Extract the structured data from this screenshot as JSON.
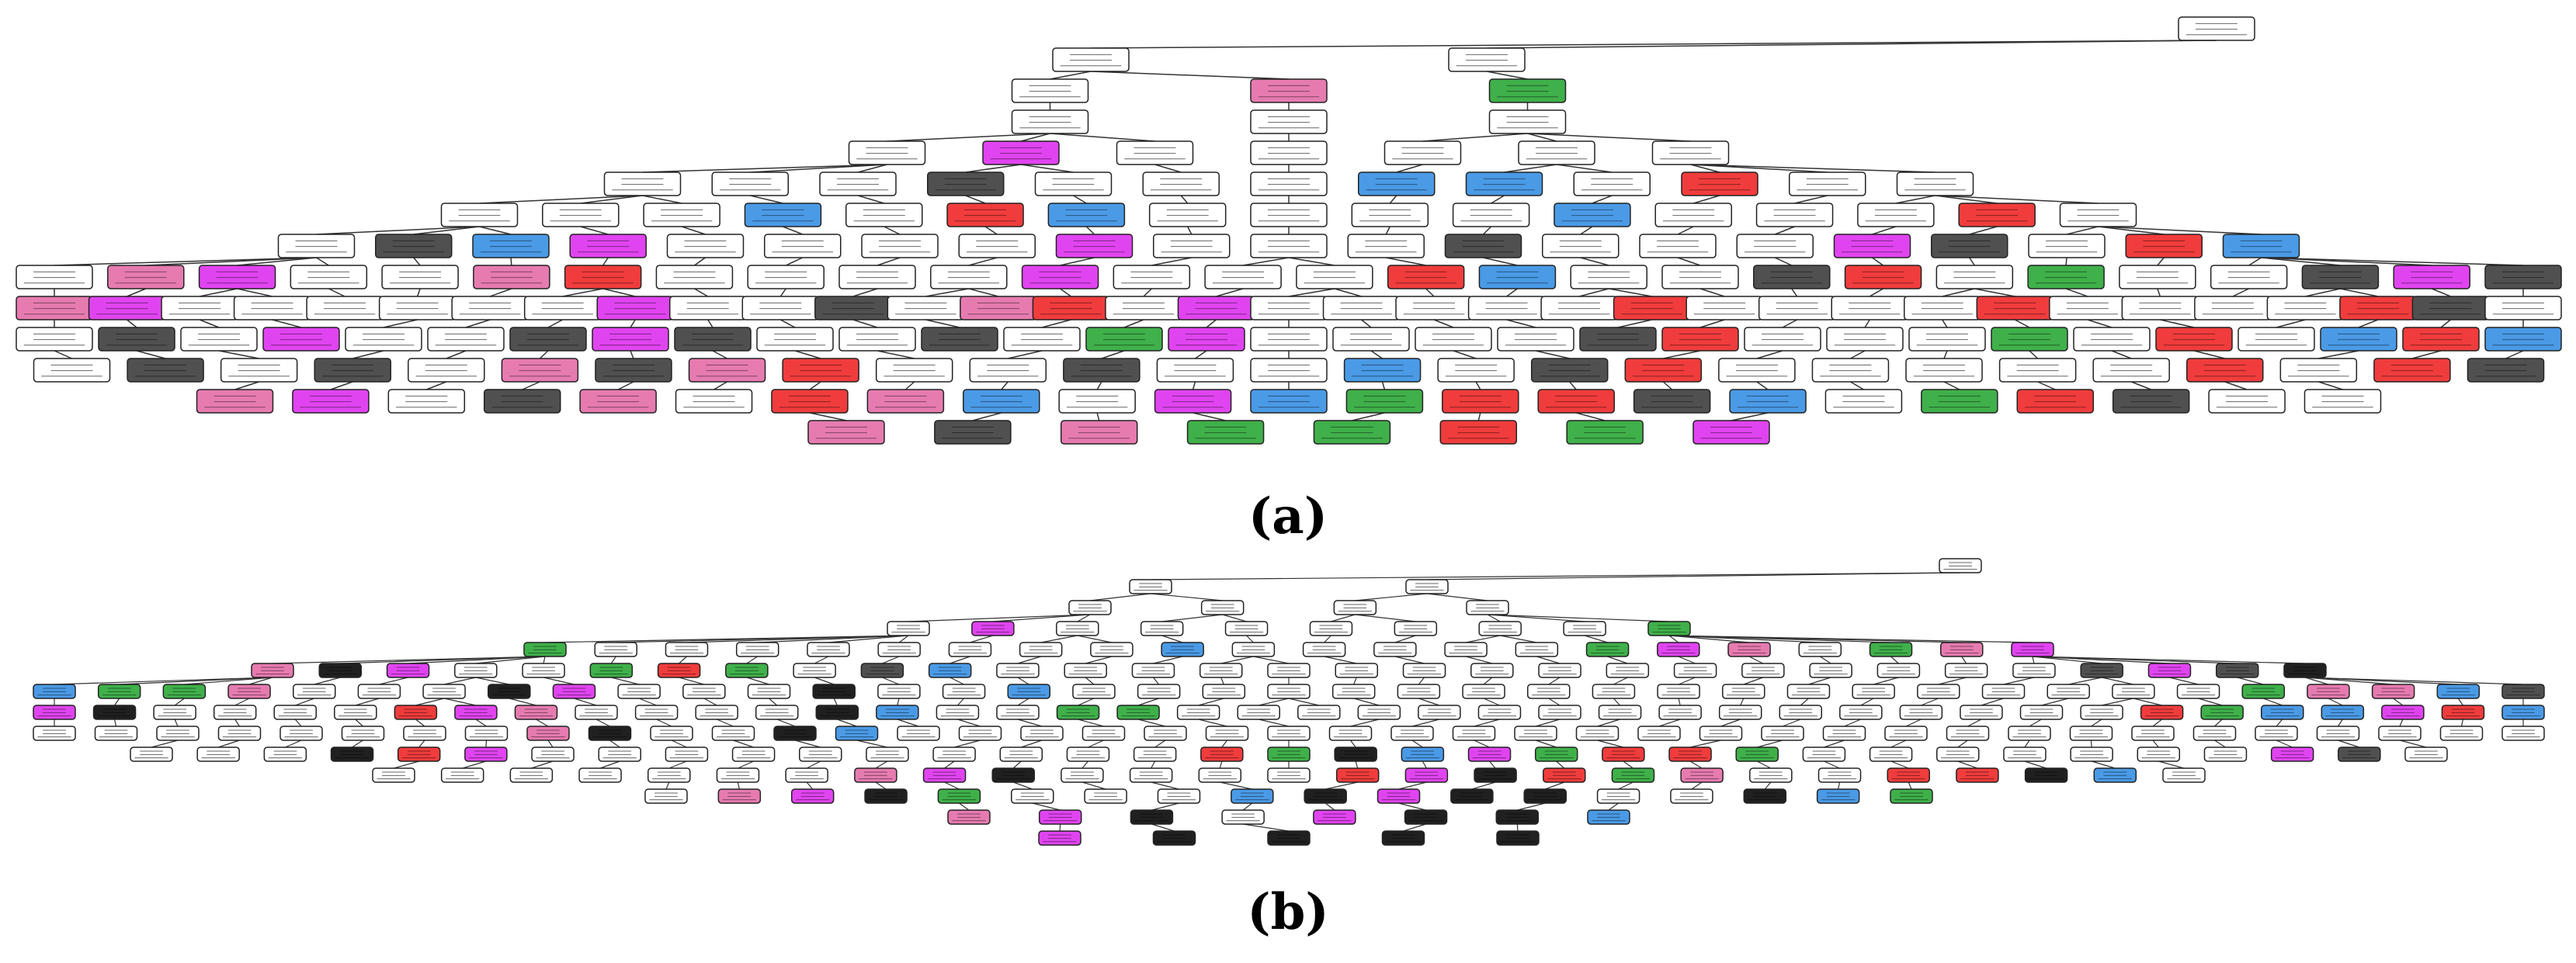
{
  "figure": {
    "captions": {
      "a": "(a)",
      "b": "(b)"
    }
  },
  "palette": {
    "white": "#ffffff",
    "pink": "#e67bb0",
    "magenta": "#e044f0",
    "red": "#f03c3c",
    "blue": "#4a9ae6",
    "green": "#3fb04a",
    "dark": "#505050",
    "black": "#202020",
    "edge": "#333333"
  },
  "tree_a": {
    "rows": [
      [
        "w"
      ],
      [
        "w",
        "w"
      ],
      [
        "w",
        "pink",
        "green"
      ],
      [
        "w",
        "w",
        "w"
      ],
      [
        "w",
        "magenta",
        "w",
        "w",
        "w",
        "w",
        "w"
      ],
      [
        "w",
        "w",
        "w",
        "dark",
        "w",
        "w",
        "w",
        "blue",
        "blue",
        "w",
        "red",
        "w",
        "w"
      ],
      [
        "w",
        "w",
        "w",
        "blue",
        "w",
        "red",
        "blue",
        "w",
        "w",
        "w",
        "w",
        "blue",
        "w",
        "w",
        "w",
        "red",
        "w"
      ],
      [
        "w",
        "dark",
        "blue",
        "magenta",
        "w",
        "w",
        "w",
        "w",
        "magenta",
        "w",
        "w",
        "w",
        "dark",
        "w",
        "w",
        "w",
        "magenta",
        "dark",
        "w",
        "red",
        "blue"
      ],
      [
        "w",
        "pink",
        "magenta",
        "w",
        "w",
        "pink",
        "red",
        "w",
        "w",
        "w",
        "w",
        "magenta",
        "w",
        "w",
        "w",
        "red",
        "blue",
        "w",
        "w",
        "dark",
        "red",
        "w",
        "green",
        "w",
        "w",
        "dark",
        "magenta",
        "dark"
      ],
      [
        "pink",
        "magenta",
        "w",
        "w",
        "w",
        "w",
        "w",
        "w",
        "magenta",
        "w",
        "w",
        "dark",
        "w",
        "pink",
        "red",
        "w",
        "magenta",
        "w",
        "w",
        "w",
        "w",
        "w",
        "red",
        "w",
        "w",
        "w",
        "w",
        "red",
        "w",
        "w",
        "w",
        "w",
        "red",
        "dark",
        "w"
      ],
      [
        "w",
        "dark",
        "w",
        "magenta",
        "w",
        "w",
        "dark",
        "magenta",
        "dark",
        "w",
        "w",
        "dark",
        "w",
        "green",
        "magenta",
        "w",
        "w",
        "w",
        "w",
        "dark",
        "red",
        "w",
        "w",
        "w",
        "green",
        "w",
        "red",
        "w",
        "blue",
        "red",
        "blue"
      ],
      [
        "w",
        "dark",
        "w",
        "dark",
        "w",
        "pink",
        "dark",
        "pink",
        "red",
        "w",
        "w",
        "dark",
        "w",
        "w",
        "blue",
        "w",
        "dark",
        "red",
        "w",
        "w",
        "w",
        "w",
        "w",
        "red",
        "w",
        "red",
        "dark"
      ],
      [
        "pink",
        "magenta",
        "w",
        "dark",
        "pink",
        "w",
        "red",
        "pink",
        "blue",
        "w",
        "magenta",
        "blue",
        "green",
        "red",
        "red",
        "dark",
        "blue",
        "w",
        "green",
        "red",
        "dark",
        "w",
        "w"
      ],
      [
        "pink",
        "dark",
        "pink",
        "green",
        "green",
        "red",
        "green",
        "magenta"
      ]
    ]
  },
  "tree_b": {
    "rows": [
      [
        "w"
      ],
      [
        "w",
        "w"
      ],
      [
        "w",
        "w",
        "w",
        "w"
      ],
      [
        "w",
        "magenta",
        "w",
        "w",
        "w",
        "w",
        "w",
        "w",
        "w",
        "green"
      ],
      [
        "green",
        "w",
        "w",
        "w",
        "w",
        "w",
        "w",
        "w",
        "w",
        "blue",
        "w",
        "w",
        "w",
        "w",
        "w",
        "green",
        "magenta",
        "pink",
        "w",
        "green",
        "pink",
        "magenta"
      ],
      [
        "pink",
        "black",
        "magenta",
        "w",
        "w",
        "green",
        "red",
        "green",
        "w",
        "dark",
        "blue",
        "w",
        "w",
        "w",
        "w",
        "w",
        "w",
        "w",
        "w",
        "w",
        "w",
        "w",
        "w",
        "w",
        "w",
        "w",
        "w",
        "dark",
        "magenta",
        "dark",
        "black"
      ],
      [
        "blue",
        "green",
        "green",
        "pink",
        "w",
        "w",
        "w",
        "black",
        "magenta",
        "w",
        "w",
        "w",
        "black",
        "w",
        "w",
        "blue",
        "w",
        "w",
        "w",
        "w",
        "w",
        "w",
        "w",
        "w",
        "w",
        "w",
        "w",
        "w",
        "w",
        "w",
        "w",
        "w",
        "w",
        "w",
        "green",
        "pink",
        "pink",
        "blue",
        "dark"
      ],
      [
        "magenta",
        "black",
        "w",
        "w",
        "w",
        "w",
        "red",
        "magenta",
        "pink",
        "w",
        "w",
        "w",
        "w",
        "black",
        "blue",
        "w",
        "w",
        "green",
        "green",
        "w",
        "w",
        "w",
        "w",
        "w",
        "w",
        "w",
        "w",
        "w",
        "w",
        "w",
        "w",
        "w",
        "w",
        "w",
        "w",
        "red",
        "green",
        "blue",
        "blue",
        "magenta",
        "red",
        "blue"
      ],
      [
        "w",
        "w",
        "w",
        "w",
        "w",
        "w",
        "w",
        "w",
        "pink",
        "black",
        "w",
        "w",
        "black",
        "blue",
        "w",
        "w",
        "w",
        "w",
        "w",
        "w",
        "w",
        "w",
        "w",
        "w",
        "w",
        "w",
        "w",
        "w",
        "w",
        "w",
        "w",
        "w",
        "w",
        "w",
        "w",
        "w",
        "w",
        "w",
        "w",
        "w",
        "w"
      ],
      [
        "w",
        "w",
        "w",
        "black",
        "red",
        "magenta",
        "w",
        "w",
        "w",
        "w",
        "w",
        "w",
        "w",
        "w",
        "w",
        "w",
        "red",
        "green",
        "black",
        "blue",
        "magenta",
        "green",
        "red",
        "red",
        "green",
        "w",
        "w",
        "w",
        "w",
        "w",
        "w",
        "w",
        "magenta",
        "dark",
        "w"
      ],
      [
        "w",
        "w",
        "w",
        "w",
        "w",
        "w",
        "w",
        "pink",
        "magenta",
        "black",
        "w",
        "w",
        "w",
        "w",
        "red",
        "magenta",
        "black",
        "red",
        "green",
        "pink",
        "w",
        "w",
        "red",
        "red",
        "black",
        "blue",
        "w"
      ],
      [
        "w",
        "pink",
        "magenta",
        "black",
        "green",
        "w",
        "w",
        "w",
        "blue",
        "black",
        "magenta",
        "black",
        "black",
        "w",
        "w",
        "black",
        "blue",
        "green"
      ],
      [
        "pink",
        "magenta",
        "black",
        "w",
        "magenta",
        "black",
        "black",
        "blue"
      ],
      [
        "magenta",
        "black",
        "black",
        "black",
        "black"
      ]
    ]
  }
}
